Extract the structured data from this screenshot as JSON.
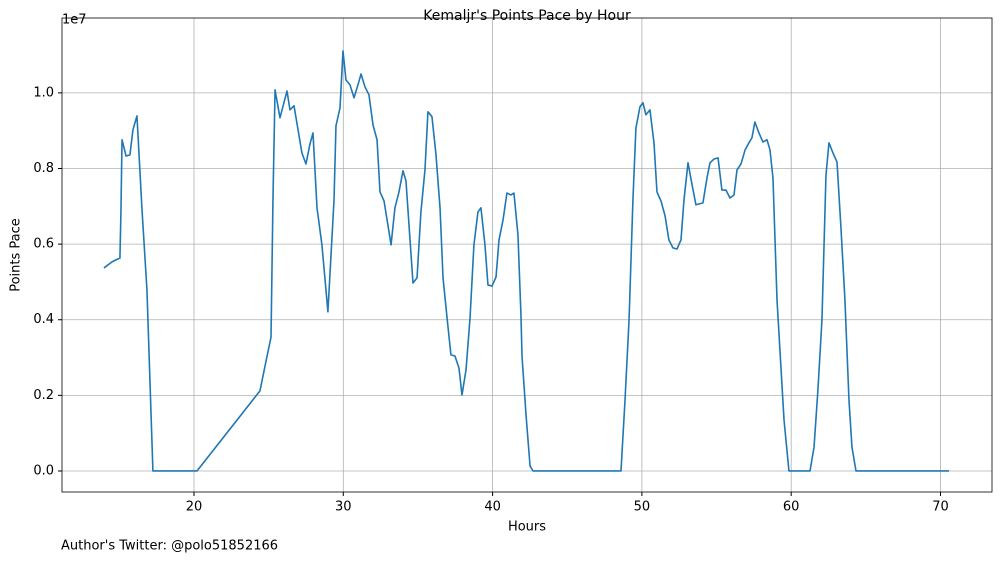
{
  "chart_data": {
    "type": "line",
    "title": "Kemaljr's Points Pace by Hour",
    "x_label": "Hours",
    "y_label": "Points Pace",
    "y_offset_label": "1e7",
    "footer": "Author's Twitter: @polo51852166",
    "color": "#1f77b4",
    "grid": true,
    "xlim": [
      11.16,
      73.45
    ],
    "ylim": [
      -0.0556,
      1.198
    ],
    "xticks": [
      20,
      30,
      40,
      50,
      60,
      70
    ],
    "yticks": [
      {
        "value": 0,
        "label": "0.0"
      },
      0.2,
      0.4,
      0.6,
      0.8,
      {
        "value": 1,
        "label": "1.0"
      }
    ],
    "x": [
      13.97,
      14.51,
      14.91,
      15.04,
      15.11,
      15.18,
      15.45,
      15.71,
      15.91,
      16.18,
      16.52,
      16.85,
      17.25,
      20.2,
      24.42,
      24.76,
      25.16,
      25.29,
      25.43,
      25.76,
      26.23,
      26.43,
      26.7,
      27.23,
      27.5,
      27.77,
      27.97,
      28.24,
      28.57,
      28.97,
      29.38,
      29.51,
      29.78,
      29.98,
      30.18,
      30.45,
      30.72,
      30.98,
      31.19,
      31.45,
      31.72,
      31.99,
      32.26,
      32.46,
      32.73,
      33.0,
      33.2,
      33.46,
      33.73,
      34.0,
      34.2,
      34.47,
      34.67,
      34.94,
      35.2,
      35.47,
      35.67,
      35.94,
      36.21,
      36.48,
      36.68,
      36.95,
      37.21,
      37.48,
      37.75,
      37.95,
      38.22,
      38.49,
      38.75,
      39.02,
      39.22,
      39.49,
      39.69,
      39.96,
      40.23,
      40.43,
      40.7,
      40.96,
      41.23,
      41.43,
      41.7,
      41.9,
      41.97,
      42.24,
      42.51,
      42.71,
      48.6,
      48.87,
      49.14,
      49.4,
      49.6,
      49.87,
      50.07,
      50.27,
      50.54,
      50.81,
      51.01,
      51.28,
      51.55,
      51.81,
      52.08,
      52.35,
      52.62,
      52.82,
      53.09,
      53.36,
      53.62,
      54.09,
      54.36,
      54.56,
      54.83,
      55.1,
      55.36,
      55.63,
      55.9,
      56.17,
      56.37,
      56.64,
      56.91,
      57.17,
      57.37,
      57.57,
      57.84,
      58.11,
      58.38,
      58.58,
      58.78,
      59.05,
      59.52,
      59.85,
      61.26,
      61.53,
      61.79,
      62.06,
      62.33,
      62.53,
      62.8,
      63.07,
      63.34,
      63.6,
      63.87,
      64.07,
      64.34,
      70.57
    ],
    "values": [
      0.537,
      0.553,
      0.561,
      0.563,
      0.69,
      0.876,
      0.833,
      0.836,
      0.902,
      0.939,
      0.69,
      0.479,
      0,
      0,
      0.212,
      0.278,
      0.354,
      0.717,
      1.008,
      0.934,
      1.005,
      0.955,
      0.966,
      0.841,
      0.812,
      0.865,
      0.894,
      0.696,
      0.598,
      0.421,
      0.717,
      0.913,
      0.96,
      1.111,
      1.034,
      1.021,
      0.987,
      1.021,
      1.05,
      1.016,
      0.995,
      0.915,
      0.876,
      0.738,
      0.714,
      0.648,
      0.598,
      0.696,
      0.738,
      0.794,
      0.767,
      0.611,
      0.497,
      0.511,
      0.685,
      0.796,
      0.95,
      0.937,
      0.836,
      0.696,
      0.511,
      0.405,
      0.307,
      0.304,
      0.272,
      0.201,
      0.267,
      0.405,
      0.598,
      0.685,
      0.696,
      0.598,
      0.492,
      0.489,
      0.513,
      0.611,
      0.664,
      0.735,
      0.73,
      0.735,
      0.624,
      0.413,
      0.304,
      0.148,
      0.013,
      0,
      0,
      0.188,
      0.399,
      0.717,
      0.907,
      0.963,
      0.974,
      0.942,
      0.955,
      0.868,
      0.738,
      0.714,
      0.675,
      0.611,
      0.59,
      0.587,
      0.611,
      0.717,
      0.815,
      0.757,
      0.704,
      0.709,
      0.775,
      0.815,
      0.825,
      0.828,
      0.743,
      0.743,
      0.722,
      0.73,
      0.796,
      0.812,
      0.849,
      0.868,
      0.881,
      0.923,
      0.894,
      0.87,
      0.876,
      0.849,
      0.775,
      0.452,
      0.135,
      0,
      0,
      0.063,
      0.214,
      0.399,
      0.783,
      0.868,
      0.841,
      0.817,
      0.638,
      0.452,
      0.188,
      0.063,
      0,
      0
    ]
  }
}
